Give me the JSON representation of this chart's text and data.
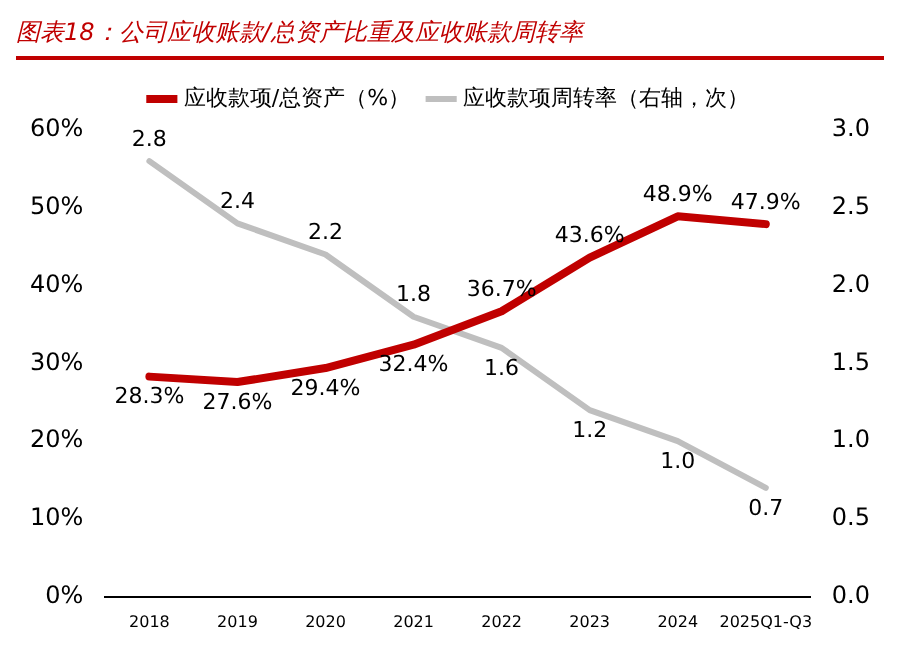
{
  "chart_data": {
    "type": "line",
    "title": "图表18：公司应收账款/总资产比重及应收账款周转率",
    "categories": [
      "2018",
      "2019",
      "2020",
      "2021",
      "2022",
      "2023",
      "2024",
      "2025Q1-Q3"
    ],
    "series": [
      {
        "name": "应收款项/总资产（%）",
        "color": "#c00000",
        "values": [
          28.3,
          27.6,
          29.4,
          32.4,
          36.7,
          43.6,
          48.9,
          47.9
        ],
        "value_labels": [
          "28.3%",
          "27.6%",
          "29.4%",
          "32.4%",
          "36.7%",
          "43.6%",
          "48.9%",
          "47.9%"
        ]
      },
      {
        "name": "应收款项周转率（右轴，次）",
        "color": "#bfbfbf",
        "axis": "y2",
        "values": [
          2.8,
          2.4,
          2.2,
          1.8,
          1.6,
          1.2,
          1.0,
          0.7
        ],
        "value_labels": [
          "2.8",
          "2.4",
          "2.2",
          "1.8",
          "1.6",
          "1.2",
          "1.0",
          "0.7"
        ]
      }
    ],
    "ylim": [
      0,
      60
    ],
    "yticks": [
      {
        "value": 0,
        "label": "0%"
      },
      {
        "value": 10,
        "label": "10%"
      },
      {
        "value": 20,
        "label": "20%"
      },
      {
        "value": 30,
        "label": "30%"
      },
      {
        "value": 40,
        "label": "40%"
      },
      {
        "value": 50,
        "label": "50%"
      },
      {
        "value": 60,
        "label": "60%"
      }
    ],
    "y2lim": [
      0,
      3
    ],
    "y2ticks": [
      {
        "value": 0,
        "label": "0.0"
      },
      {
        "value": 0.5,
        "label": "0.5"
      },
      {
        "value": 1,
        "label": "1.0"
      },
      {
        "value": 1.5,
        "label": "1.5"
      },
      {
        "value": 2,
        "label": "2.0"
      },
      {
        "value": 2.5,
        "label": "2.5"
      },
      {
        "value": 3,
        "label": "3.0"
      }
    ],
    "legend": "top",
    "grid": false,
    "marker": "none",
    "line_style": "solid"
  }
}
